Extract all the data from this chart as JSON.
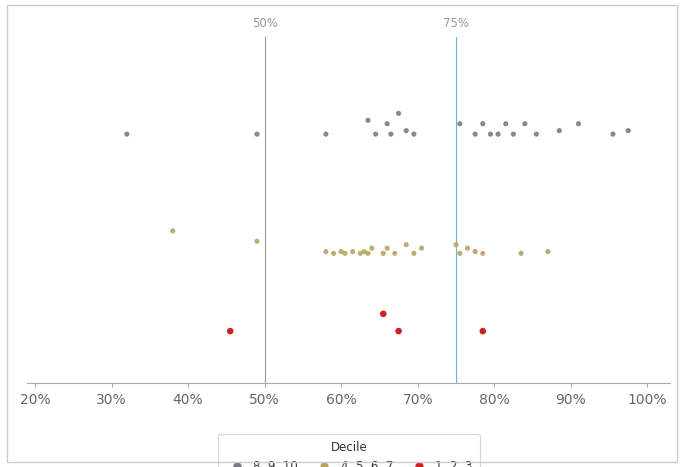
{
  "gray_x": [
    0.32,
    0.49,
    0.58,
    0.635,
    0.645,
    0.66,
    0.665,
    0.675,
    0.685,
    0.695,
    0.755,
    0.775,
    0.785,
    0.795,
    0.805,
    0.815,
    0.825,
    0.84,
    0.855,
    0.885,
    0.91,
    0.955,
    0.975
  ],
  "gray_y": [
    0.72,
    0.72,
    0.72,
    0.76,
    0.72,
    0.75,
    0.72,
    0.78,
    0.73,
    0.72,
    0.75,
    0.72,
    0.75,
    0.72,
    0.72,
    0.75,
    0.72,
    0.75,
    0.72,
    0.73,
    0.75,
    0.72,
    0.73
  ],
  "tan_x": [
    0.38,
    0.49,
    0.58,
    0.59,
    0.6,
    0.605,
    0.615,
    0.625,
    0.63,
    0.635,
    0.64,
    0.655,
    0.66,
    0.67,
    0.685,
    0.695,
    0.705,
    0.75,
    0.755,
    0.765,
    0.775,
    0.785,
    0.835,
    0.87
  ],
  "tan_y": [
    0.44,
    0.41,
    0.38,
    0.375,
    0.38,
    0.375,
    0.38,
    0.375,
    0.38,
    0.375,
    0.39,
    0.375,
    0.39,
    0.375,
    0.4,
    0.375,
    0.39,
    0.4,
    0.375,
    0.39,
    0.38,
    0.375,
    0.375,
    0.38
  ],
  "red_x": [
    0.455,
    0.655,
    0.675,
    0.785
  ],
  "red_y": [
    0.15,
    0.2,
    0.15,
    0.15
  ],
  "vline1": 0.5,
  "vline2": 0.75,
  "vline1_color": "#999999",
  "vline2_color": "#5bbccc",
  "gray_color": "#7a7a8a",
  "tan_color": "#b8a460",
  "red_color": "#cc2222",
  "xlim": [
    0.19,
    1.03
  ],
  "ylim": [
    0.0,
    1.0
  ],
  "xticks": [
    0.2,
    0.3,
    0.4,
    0.5,
    0.6,
    0.7,
    0.8,
    0.9,
    1.0
  ],
  "xtick_labels": [
    "20%",
    "30%",
    "40%",
    "50%",
    "60%",
    "70%",
    "80%",
    "90%",
    "100%"
  ],
  "vline1_label": "50%",
  "vline2_label": "75%",
  "legend_title": "Decile",
  "legend_labels": [
    "8, 9, 10",
    "4, 5, 6, 7",
    "1, 2, 3"
  ],
  "marker_size": 5,
  "background_color": "#ffffff",
  "border_color": "#cccccc"
}
